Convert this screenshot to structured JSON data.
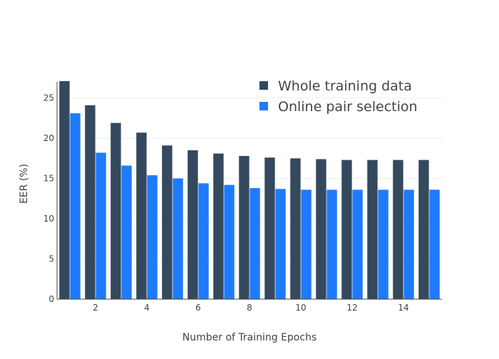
{
  "chart_data": {
    "type": "bar",
    "title": "",
    "xlabel": "Number of Training Epochs",
    "ylabel": "EER (%)",
    "x": [
      1,
      2,
      3,
      4,
      5,
      6,
      7,
      8,
      9,
      10,
      11,
      12,
      13,
      14,
      15
    ],
    "xticks": [
      2,
      4,
      6,
      8,
      10,
      12,
      14
    ],
    "xlim": [
      0.5,
      15.5
    ],
    "ylim": [
      0,
      27
    ],
    "yticks": [
      0,
      5,
      10,
      15,
      20,
      25
    ],
    "grid": true,
    "legend_position": "top-right",
    "series": [
      {
        "name": "Whole training data",
        "color": "#34495e",
        "values": [
          27.1,
          24.1,
          21.9,
          20.7,
          19.1,
          18.5,
          18.1,
          17.8,
          17.6,
          17.5,
          17.4,
          17.3,
          17.3,
          17.3,
          17.3
        ]
      },
      {
        "name": "Online pair selection",
        "color": "#1f7bfd",
        "values": [
          23.1,
          18.2,
          16.6,
          15.4,
          15.0,
          14.4,
          14.2,
          13.8,
          13.7,
          13.6,
          13.6,
          13.6,
          13.6,
          13.6,
          13.6
        ]
      }
    ]
  }
}
